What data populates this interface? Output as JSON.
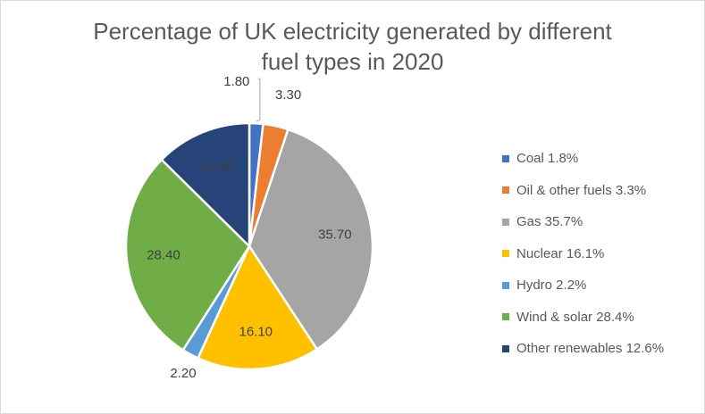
{
  "chart_data": {
    "type": "pie",
    "title": "Percentage of UK electricity generated by different fuel types in 2020",
    "title_lines": [
      "Percentage of UK electricity generated by different",
      "fuel types in 2020"
    ],
    "slices": [
      {
        "name": "Coal",
        "value": 1.8,
        "label": "1.80",
        "legend": "Coal 1.8%",
        "color": "#4472c4"
      },
      {
        "name": "Oil & other fuels",
        "value": 3.3,
        "label": "3.30",
        "legend": "Oil & other fuels 3.3%",
        "color": "#ed7d31"
      },
      {
        "name": "Gas",
        "value": 35.7,
        "label": "35.70",
        "legend": "Gas 35.7%",
        "color": "#a5a5a5"
      },
      {
        "name": "Nuclear",
        "value": 16.1,
        "label": "16.10",
        "legend": "Nuclear 16.1%",
        "color": "#ffc000"
      },
      {
        "name": "Hydro",
        "value": 2.2,
        "label": "2.20",
        "legend": "Hydro 2.2%",
        "color": "#5b9bd5"
      },
      {
        "name": "Wind & solar",
        "value": 28.4,
        "label": "28.40",
        "legend": "Wind & solar 28.4%",
        "color": "#70ad47"
      },
      {
        "name": "Other renewables",
        "value": 12.6,
        "label": "12.60",
        "legend": "Other renewables 12.6%",
        "color": "#264478"
      }
    ],
    "legend_position": "right",
    "start_angle_deg": 0,
    "direction": "clockwise"
  }
}
